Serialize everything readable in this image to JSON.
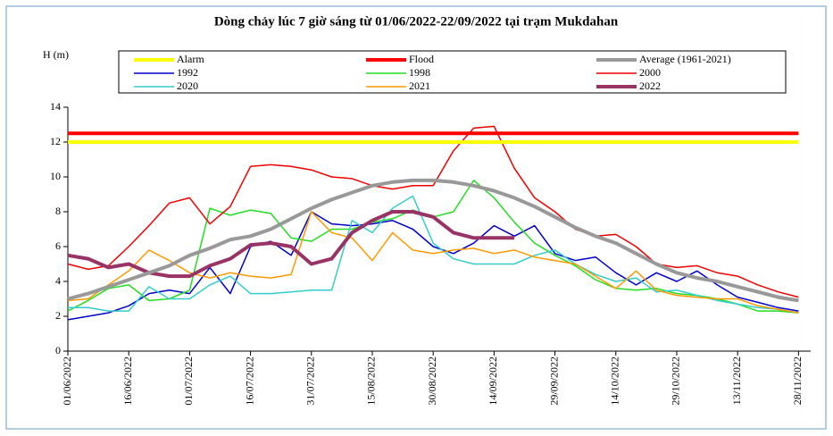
{
  "chart_data": {
    "type": "line",
    "title": "Dòng chảy lúc 7 giờ sáng từ 01/06/2022-22/09/2022 tại trạm Mukdahan",
    "y_label": "H (m)",
    "x": [
      "01/06/2022",
      "06/06/2022",
      "11/06/2022",
      "16/06/2022",
      "21/06/2022",
      "26/06/2022",
      "01/07/2022",
      "06/07/2022",
      "11/07/2022",
      "16/07/2022",
      "21/07/2022",
      "26/07/2022",
      "31/07/2022",
      "05/08/2022",
      "10/08/2022",
      "15/08/2022",
      "20/08/2022",
      "25/08/2022",
      "30/08/2022",
      "04/09/2022",
      "09/09/2022",
      "14/09/2022",
      "19/09/2022",
      "24/09/2022",
      "29/09/2022",
      "04/10/2022",
      "09/10/2022",
      "14/10/2022",
      "19/10/2022",
      "24/10/2022",
      "29/10/2022",
      "03/11/2022",
      "08/11/2022",
      "13/11/2022",
      "18/11/2022",
      "23/11/2022",
      "28/11/2022"
    ],
    "xlim": [
      "01/06/2022",
      "01/12/2022"
    ],
    "xticks": [
      "01/06/2022",
      "16/06/2022",
      "01/07/2022",
      "16/07/2022",
      "31/07/2022",
      "15/08/2022",
      "30/08/2022",
      "14/09/2022",
      "29/09/2022",
      "14/10/2022",
      "29/10/2022",
      "13/11/2022",
      "28/11/2022"
    ],
    "ylim": [
      0,
      14
    ],
    "yticks": [
      0,
      2,
      4,
      6,
      8,
      10,
      12,
      14
    ],
    "grid": false,
    "legend": "top",
    "series": [
      {
        "name": "Alarm",
        "color": "#ffff00",
        "width": 4,
        "values": [
          12,
          12,
          12,
          12,
          12,
          12,
          12,
          12,
          12,
          12,
          12,
          12,
          12,
          12,
          12,
          12,
          12,
          12,
          12,
          12,
          12,
          12,
          12,
          12,
          12,
          12,
          12,
          12,
          12,
          12,
          12,
          12,
          12,
          12,
          12,
          12,
          12
        ]
      },
      {
        "name": "Flood",
        "color": "#ff0000",
        "width": 4,
        "values": [
          12.5,
          12.5,
          12.5,
          12.5,
          12.5,
          12.5,
          12.5,
          12.5,
          12.5,
          12.5,
          12.5,
          12.5,
          12.5,
          12.5,
          12.5,
          12.5,
          12.5,
          12.5,
          12.5,
          12.5,
          12.5,
          12.5,
          12.5,
          12.5,
          12.5,
          12.5,
          12.5,
          12.5,
          12.5,
          12.5,
          12.5,
          12.5,
          12.5,
          12.5,
          12.5,
          12.5,
          12.5
        ]
      },
      {
        "name": "Average (1961-2021)",
        "color": "#999999",
        "width": 4,
        "values": [
          3.0,
          3.3,
          3.7,
          4.1,
          4.5,
          4.9,
          5.5,
          5.9,
          6.4,
          6.6,
          7.0,
          7.6,
          8.2,
          8.7,
          9.1,
          9.5,
          9.7,
          9.8,
          9.8,
          9.7,
          9.5,
          9.2,
          8.8,
          8.3,
          7.7,
          7.1,
          6.6,
          6.2,
          5.6,
          5.0,
          4.5,
          4.2,
          4.0,
          3.7,
          3.4,
          3.1,
          2.9
        ]
      },
      {
        "name": "1992",
        "color": "#0000cc",
        "width": 1.5,
        "values": [
          1.8,
          2.0,
          2.2,
          2.6,
          3.3,
          3.5,
          3.3,
          4.8,
          3.3,
          6.0,
          6.3,
          5.5,
          8.0,
          7.3,
          7.2,
          7.3,
          7.5,
          7.0,
          6.0,
          5.6,
          6.2,
          7.2,
          6.6,
          7.2,
          5.6,
          5.2,
          5.4,
          4.5,
          3.8,
          4.5,
          4.0,
          4.6,
          3.8,
          3.1,
          2.8,
          2.5,
          2.3
        ]
      },
      {
        "name": "1998",
        "color": "#22dd22",
        "width": 1.5,
        "values": [
          2.3,
          2.9,
          3.6,
          3.8,
          2.9,
          3.0,
          3.5,
          8.2,
          7.8,
          8.1,
          7.9,
          6.5,
          6.3,
          7.0,
          7.0,
          7.4,
          7.6,
          8.1,
          7.7,
          8.0,
          9.8,
          8.8,
          7.4,
          6.2,
          5.5,
          4.9,
          4.1,
          3.6,
          3.5,
          3.6,
          3.3,
          3.2,
          3.0,
          2.7,
          2.3,
          2.3,
          2.2
        ]
      },
      {
        "name": "2000",
        "color": "#ee0000",
        "width": 1.5,
        "values": [
          5.0,
          4.7,
          4.9,
          6.0,
          7.2,
          8.5,
          8.8,
          7.3,
          8.3,
          10.6,
          10.7,
          10.6,
          10.4,
          10.0,
          9.9,
          9.5,
          9.3,
          9.5,
          9.5,
          11.5,
          12.8,
          12.9,
          10.5,
          8.8,
          8.0,
          7.0,
          6.6,
          6.7,
          6.0,
          5.0,
          4.8,
          4.9,
          4.5,
          4.3,
          3.8,
          3.4,
          3.1
        ]
      },
      {
        "name": "2020",
        "color": "#33cccc",
        "width": 1.5,
        "values": [
          2.5,
          2.5,
          2.3,
          2.3,
          3.7,
          3.0,
          3.0,
          3.8,
          4.3,
          3.3,
          3.3,
          3.4,
          3.5,
          3.5,
          7.5,
          6.8,
          8.2,
          8.9,
          6.2,
          5.3,
          5.0,
          5.0,
          5.0,
          5.5,
          5.8,
          5.0,
          4.4,
          4.0,
          4.2,
          3.4,
          3.5,
          3.2,
          2.9,
          2.7,
          2.5,
          2.4,
          2.2
        ]
      },
      {
        "name": "2021",
        "color": "#ff9900",
        "width": 1.5,
        "values": [
          2.9,
          3.0,
          3.8,
          4.6,
          5.8,
          5.2,
          4.5,
          4.2,
          4.5,
          4.3,
          4.2,
          4.4,
          8.0,
          6.8,
          6.5,
          5.2,
          6.8,
          5.8,
          5.6,
          5.8,
          5.9,
          5.6,
          5.8,
          5.4,
          5.2,
          5.0,
          4.3,
          3.6,
          4.6,
          3.5,
          3.2,
          3.1,
          3.0,
          3.0,
          2.6,
          2.4,
          2.2
        ]
      },
      {
        "name": "2022",
        "color": "#993366",
        "width": 4,
        "values": [
          5.5,
          5.3,
          4.8,
          5.0,
          4.5,
          4.3,
          4.3,
          4.9,
          5.3,
          6.1,
          6.2,
          6.0,
          5.0,
          5.3,
          6.8,
          7.5,
          8.0,
          8.0,
          7.7,
          6.8,
          6.5,
          6.5,
          6.5,
          null,
          null,
          null,
          null,
          null,
          null,
          null,
          null,
          null,
          null,
          null,
          null,
          null,
          null
        ]
      }
    ]
  }
}
